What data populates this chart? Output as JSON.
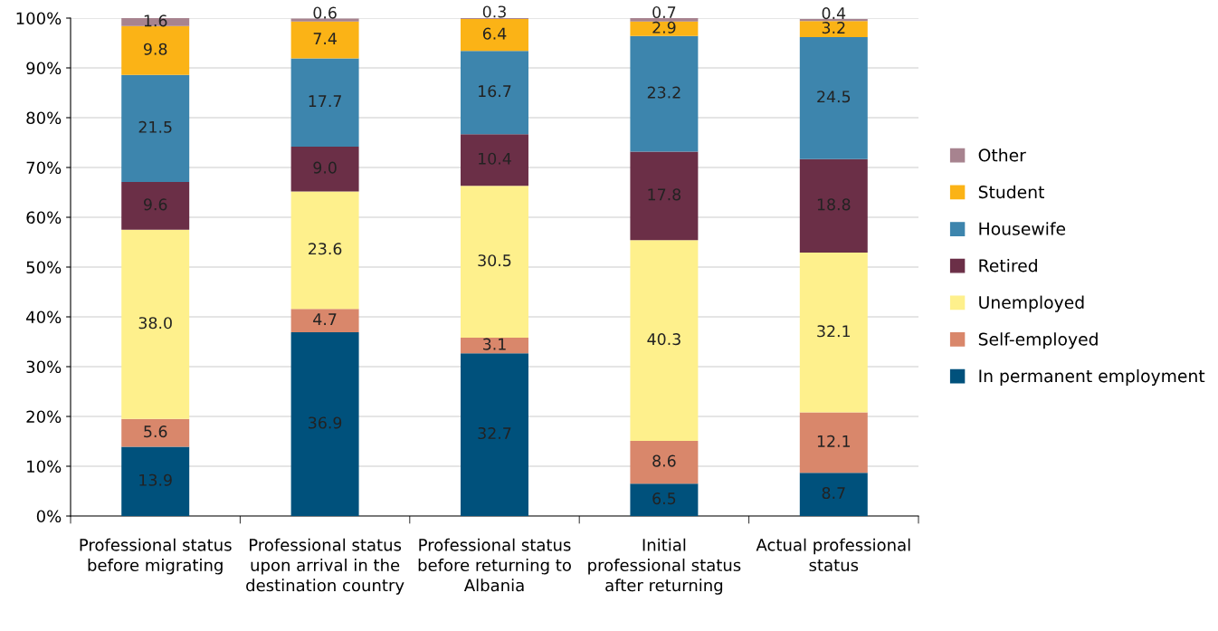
{
  "chart_data": {
    "type": "bar",
    "stacked": true,
    "categories": [
      "Professional status before migrating",
      "Professional status upon arrival in the destination country",
      "Professional status before returning to Albania",
      "Initial professional status after returning",
      "Actual professional status"
    ],
    "series": [
      {
        "name": "In permanent employment",
        "color": "#00517c",
        "values": [
          13.9,
          36.9,
          32.7,
          6.5,
          8.7
        ],
        "value_labels": [
          "13.9",
          "36.9",
          "32.7",
          "6.5",
          "8.7"
        ]
      },
      {
        "name": "Self-employed",
        "color": "#d9876b",
        "values": [
          5.6,
          4.7,
          3.1,
          8.6,
          12.1
        ],
        "value_labels": [
          "5.6",
          "4.7",
          "3.1",
          "8.6",
          "12.1"
        ]
      },
      {
        "name": "Unemployed",
        "color": "#fef08c",
        "values": [
          38.0,
          23.6,
          30.5,
          40.3,
          32.1
        ],
        "value_labels": [
          "38.0",
          "23.6",
          "30.5",
          "40.3",
          "32.1"
        ]
      },
      {
        "name": "Retired",
        "color": "#6b2f47",
        "values": [
          9.6,
          9.0,
          10.4,
          17.8,
          18.8
        ],
        "value_labels": [
          "9.6",
          "9.0",
          "10.4",
          "17.8",
          "18.8"
        ]
      },
      {
        "name": "Housewife",
        "color": "#3d85ad",
        "values": [
          21.5,
          17.7,
          16.7,
          23.2,
          24.5
        ],
        "value_labels": [
          "21.5",
          "17.7",
          "16.7",
          "23.2",
          "24.5"
        ]
      },
      {
        "name": "Student",
        "color": "#fbb316",
        "values": [
          9.8,
          7.4,
          6.4,
          2.9,
          3.2
        ],
        "value_labels": [
          "9.8",
          "7.4",
          "6.4",
          "2.9",
          "3.2"
        ]
      },
      {
        "name": "Other",
        "color": "#a7838f",
        "values": [
          1.6,
          0.6,
          0.3,
          0.7,
          0.4
        ],
        "value_labels": [
          "1.6",
          "0.6",
          "0.3",
          "0.7",
          "0.4"
        ]
      }
    ],
    "ylim": [
      0,
      100
    ],
    "yticks": [
      {
        "value": 0,
        "label": "0%"
      },
      {
        "value": 10,
        "label": "10%"
      },
      {
        "value": 20,
        "label": "20%"
      },
      {
        "value": 30,
        "label": "30%"
      },
      {
        "value": 40,
        "label": "40%"
      },
      {
        "value": 50,
        "label": "50%"
      },
      {
        "value": 60,
        "label": "60%"
      },
      {
        "value": 70,
        "label": "70%"
      },
      {
        "value": 80,
        "label": "80%"
      },
      {
        "value": 90,
        "label": "90%"
      },
      {
        "value": 100,
        "label": "100%"
      }
    ],
    "grid": "y",
    "legend": "right"
  }
}
